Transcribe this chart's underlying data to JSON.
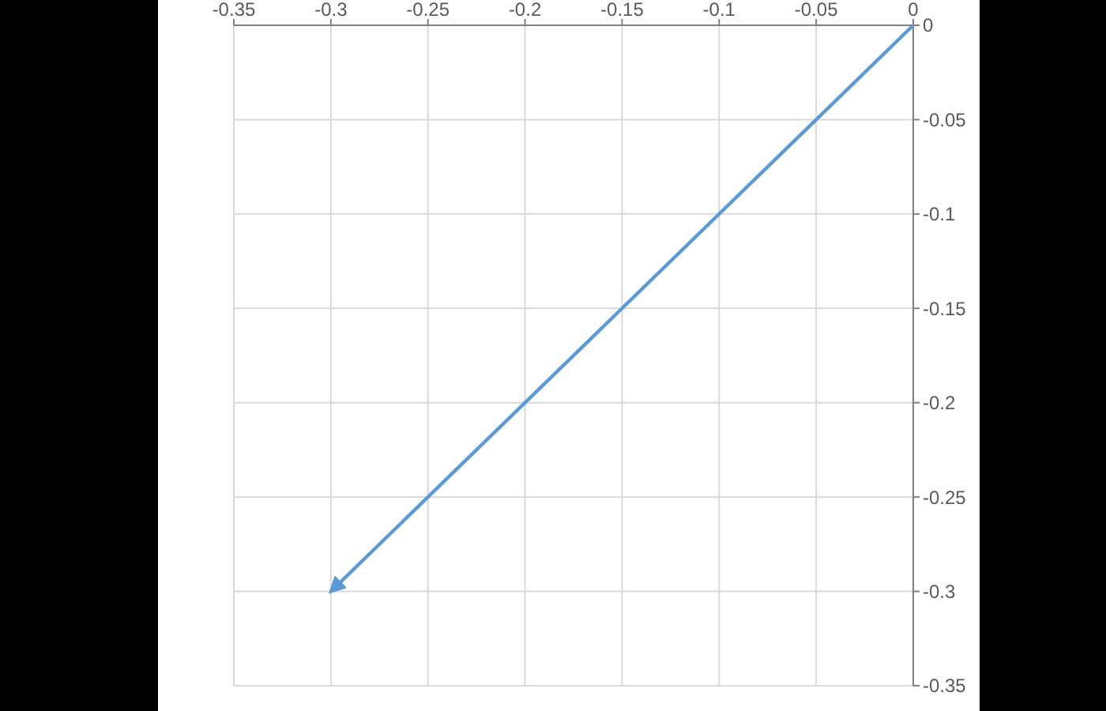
{
  "chart_data": {
    "type": "line",
    "x": [
      0,
      -0.3
    ],
    "series": [
      {
        "color": "#5b9bd5",
        "values": [
          0,
          -0.3
        ]
      }
    ],
    "xlim": [
      -0.35,
      0
    ],
    "ylim": [
      -0.35,
      0
    ],
    "xticks": [
      -0.35,
      -0.3,
      -0.25,
      -0.2,
      -0.15,
      -0.1,
      -0.05,
      0
    ],
    "yticks": [
      0,
      -0.05,
      -0.1,
      -0.15,
      -0.2,
      -0.25,
      -0.3,
      -0.35
    ],
    "grid": true,
    "marker": "none",
    "line_style": "solid"
  }
}
